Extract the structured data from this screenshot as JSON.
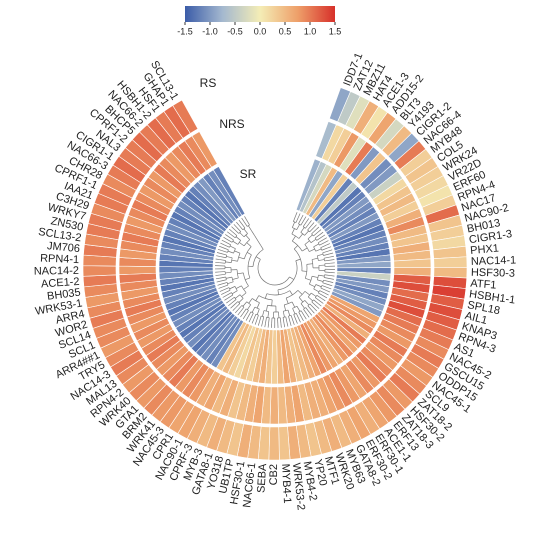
{
  "chart_data": {
    "type": "circular-heatmap",
    "categories": [
      "IDD7-1",
      "ZAT12",
      "MBZ11",
      "HAT4",
      "ACE1-3",
      "ADD15-2",
      "BLT3",
      "Y4193",
      "CIGR1-2",
      "NAC66-4",
      "MYB48",
      "COL5",
      "WRK24",
      "VR22D",
      "ERF60",
      "RPN4-4",
      "NAC17",
      "NAC90-2",
      "BH013",
      "CIGR1-3",
      "PHX1",
      "NAC14-1",
      "HSF30-3",
      "ATF1",
      "HSBH1-1",
      "SPL18",
      "AIL1",
      "KNAP3",
      "RPN4-3",
      "AS1",
      "NAC45-2",
      "GSCU15",
      "ODDP15",
      "NAC45-1",
      "SCL9",
      "ZAT18-2",
      "HSF30-2",
      "ZAT18-3",
      "ERF13",
      "ACE1-1",
      "ERF30-1",
      "ERF30-2",
      "GATA8-2",
      "MYB63",
      "WRK20",
      "MTF1",
      "YP20",
      "MYB4-2",
      "WRK53-2",
      "MYB4-1",
      "CB2",
      "SEBA",
      "NAC66-1",
      "HSF30-1",
      "UB1TP",
      "YO318",
      "GATA8-1",
      "MYB-3",
      "CPRF-3",
      "NAC90-1",
      "CPR1",
      "NAC45-3",
      "WRK41",
      "BRM2",
      "GTA1",
      "WRK40",
      "RPN4-2",
      "MAL13",
      "NAC14-3",
      "TRY5",
      "ARR4##1",
      "SCL1",
      "SCL14",
      "WOR2",
      "ARR4",
      "WRK53-1",
      "BH035",
      "ACE1-2",
      "NAC14-2",
      "RPN4-1",
      "JM706",
      "SCL13-2",
      "ZN530",
      "WRKY7",
      "C3H29",
      "IAA21",
      "CPRF1-1",
      "CHR28",
      "NAC66-3",
      "CIGR1-1",
      "NAL3",
      "CPRF1-2",
      "BHCP5",
      "NAC66-2",
      "HSBH1-2",
      "HSF1",
      "GHAP1",
      "SCL13-1"
    ],
    "series": [
      {
        "name": "SR",
        "values": [
          -0.8,
          -0.6,
          -0.3,
          0.5,
          -0.9,
          0.3,
          -1.2,
          -0.5,
          -1.3,
          -1.2,
          -1.0,
          -1.1,
          -1.2,
          -1.0,
          -1.2,
          -1.3,
          -1.2,
          -1.1,
          -1.2,
          -1.3,
          -1.0,
          -0.9,
          -1.2,
          -0.4,
          -1.1,
          -1.0,
          -1.2,
          -1.1,
          -0.9,
          -1.0,
          0.7,
          0.8,
          0.9,
          0.6,
          1.0,
          0.8,
          0.7,
          0.9,
          0.8,
          0.6,
          0.7,
          0.8,
          0.9,
          0.7,
          0.6,
          0.5,
          0.4,
          0.6,
          0.7,
          0.5,
          0.3,
          0.4,
          0.6,
          0.5,
          0.3,
          0.4,
          0.2,
          0.3,
          0.5,
          0.4,
          -1.1,
          -1.2,
          -1.1,
          -1.2,
          -1.3,
          -1.1,
          -1.2,
          -1.3,
          -1.2,
          -1.1,
          -1.2,
          -1.3,
          -1.2,
          -1.1,
          -1.2,
          -1.3,
          -1.2,
          -1.1,
          -1.2,
          -1.3,
          -1.2,
          -1.1,
          -1.2,
          -1.3,
          -1.2,
          -1.1,
          -1.2,
          -1.3,
          -1.2,
          -1.1,
          -1.2,
          -1.3,
          -1.2,
          -1.1,
          -1.0,
          -1.2,
          -1.1,
          -1.2
        ]
      },
      {
        "name": "NRS",
        "values": [
          -0.7,
          0.2,
          0.3,
          0.8,
          -0.2,
          1.0,
          -1.0,
          0.4,
          -1.1,
          -1.0,
          -0.4,
          0.2,
          0.4,
          0.5,
          0.3,
          0.6,
          0.9,
          0.5,
          0.4,
          0.6,
          0.5,
          0.4,
          0.6,
          1.2,
          1.3,
          1.1,
          1.2,
          1.3,
          1.1,
          1.0,
          0.9,
          0.8,
          1.0,
          0.9,
          0.8,
          0.9,
          1.0,
          0.8,
          0.9,
          0.7,
          0.8,
          0.9,
          0.8,
          0.7,
          0.6,
          0.6,
          0.5,
          0.7,
          0.6,
          0.5,
          0.6,
          0.5,
          0.7,
          0.6,
          0.5,
          0.4,
          0.6,
          0.5,
          0.7,
          0.6,
          0.8,
          0.9,
          0.8,
          1.0,
          0.9,
          0.8,
          0.9,
          1.0,
          0.9,
          0.8,
          0.9,
          0.8,
          0.9,
          1.0,
          0.9,
          0.8,
          0.9,
          1.0,
          0.8,
          0.9,
          0.8,
          0.9,
          1.0,
          0.9,
          0.8,
          0.9,
          1.0,
          0.9,
          0.8,
          0.9,
          0.8,
          1.0,
          0.9,
          0.8,
          0.9,
          1.0,
          0.9,
          0.8
        ]
      },
      {
        "name": "RS",
        "values": [
          -0.9,
          -0.5,
          -0.2,
          0.6,
          0.1,
          0.7,
          -0.3,
          0.5,
          -0.9,
          1.0,
          0.3,
          0.4,
          0.3,
          0.2,
          0.1,
          0.3,
          1.1,
          0.4,
          0.3,
          0.2,
          0.4,
          0.3,
          0.5,
          1.3,
          1.4,
          1.2,
          1.3,
          1.2,
          1.1,
          1.0,
          0.9,
          1.0,
          0.9,
          0.8,
          0.9,
          1.0,
          0.8,
          0.9,
          0.8,
          0.7,
          0.6,
          0.7,
          0.6,
          0.5,
          0.6,
          0.5,
          0.4,
          0.5,
          0.6,
          0.4,
          0.5,
          0.4,
          0.5,
          0.6,
          0.4,
          0.5,
          0.6,
          0.5,
          0.6,
          0.7,
          0.7,
          0.8,
          0.8,
          0.9,
          0.8,
          0.9,
          0.8,
          0.9,
          1.0,
          0.9,
          0.8,
          0.9,
          0.9,
          1.0,
          0.9,
          0.8,
          0.9,
          1.0,
          0.9,
          0.9,
          1.0,
          0.9,
          1.0,
          1.0,
          0.9,
          1.0,
          1.0,
          0.9,
          1.0,
          1.1,
          1.0,
          1.0,
          1.1,
          1.0,
          1.1,
          1.0,
          1.1,
          1.0
        ]
      }
    ],
    "zlim": [
      -1.5,
      1.5
    ],
    "zticks": [
      -1.5,
      {
        "value": -1,
        "label": "-1.0"
      },
      -0.5,
      {
        "value": 0,
        "label": "0.0"
      },
      0.5,
      {
        "value": 1,
        "label": "1.0"
      },
      1.5
    ],
    "colorscale": [
      "#3b5ca8",
      "#a4b8cf",
      "#f4edb6",
      "#eea06a",
      "#d7302a"
    ]
  }
}
